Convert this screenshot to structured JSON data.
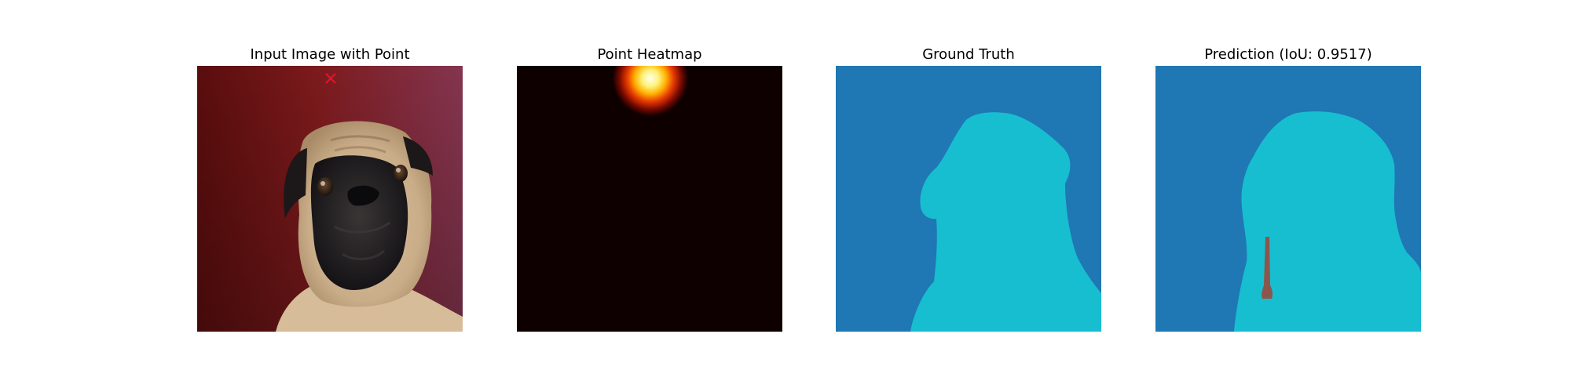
{
  "panels": [
    {
      "title": "Input Image with Point"
    },
    {
      "title": "Point Heatmap"
    },
    {
      "title": "Ground Truth"
    },
    {
      "title": "Prediction (IoU: 0.9517)"
    }
  ],
  "colors": {
    "point_marker": "#e8132a",
    "background_class": "#1f77b4",
    "foreground_class": "#17becf",
    "error_class": "#8c564b",
    "heatmap_background": "#0f0000"
  }
}
